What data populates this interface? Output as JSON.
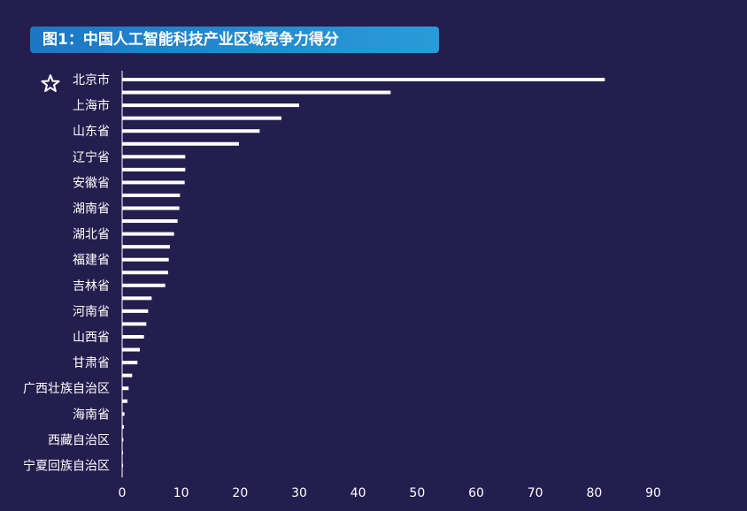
{
  "chart_data": {
    "type": "bar",
    "orientation": "horizontal",
    "title": "图1：中国人工智能科技产业区域竞争力得分",
    "xlabel": "",
    "ylabel": "",
    "xlim": [
      0,
      90
    ],
    "x_ticks": [
      "0",
      "10",
      "20",
      "30",
      "40",
      "50",
      "60",
      "70",
      "80",
      "90"
    ],
    "grid": false,
    "highlight_icon": "star-outline-icon",
    "labeled_categories": [
      "北京市",
      "上海市",
      "山东省",
      "辽宁省",
      "安徽省",
      "湖南省",
      "湖北省",
      "福建省",
      "吉林省",
      "河南省",
      "山西省",
      "甘肃省",
      "广西壮族自治区",
      "海南省",
      "西藏自治区",
      "宁夏回族自治区"
    ],
    "values": [
      81.8,
      45.5,
      30.0,
      27.0,
      23.3,
      19.8,
      10.7,
      10.7,
      10.6,
      9.8,
      9.7,
      9.4,
      8.8,
      8.1,
      7.9,
      7.8,
      7.3,
      5.0,
      4.4,
      4.1,
      3.7,
      3.0,
      2.6,
      1.7,
      1.1,
      0.9,
      0.4,
      0.3,
      0.2,
      0.15,
      0.1
    ],
    "bar_color": "#ffffff"
  }
}
